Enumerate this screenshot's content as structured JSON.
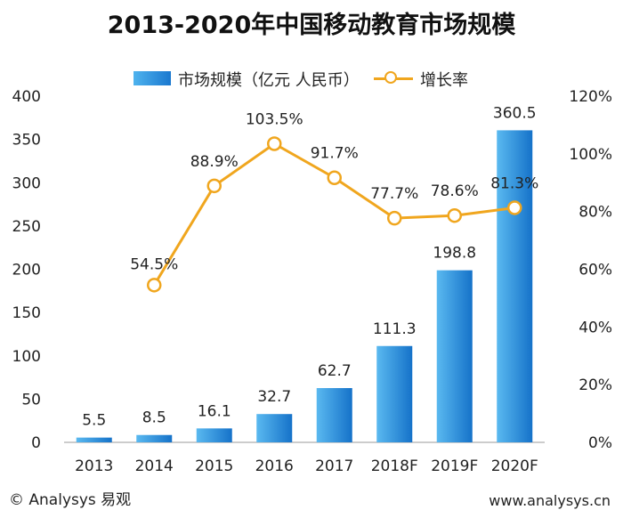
{
  "title": "2013-2020年中国移动教育市场规模",
  "footer": {
    "left": "© Analysys 易观",
    "right": "www.analysys.cn"
  },
  "colors": {
    "bar": "#1f88d8",
    "line": "#f0a61e",
    "text": "#222222"
  },
  "chart_data": {
    "type": "bar",
    "categories": [
      "2013",
      "2014",
      "2015",
      "2016",
      "2017",
      "2018F",
      "2019F",
      "2020F"
    ],
    "series": [
      {
        "name": "市场规模（亿元 人民币）",
        "type": "bar",
        "axis": "left",
        "values": [
          5.5,
          8.5,
          16.1,
          32.7,
          62.7,
          111.3,
          198.8,
          360.5
        ],
        "labels": [
          "5.5",
          "8.5",
          "16.1",
          "32.7",
          "62.7",
          "111.3",
          "198.8",
          "360.5"
        ]
      },
      {
        "name": "增长率",
        "type": "line",
        "axis": "right",
        "values": [
          null,
          54.5,
          88.9,
          103.5,
          91.7,
          77.7,
          78.6,
          81.3
        ],
        "labels": [
          "",
          "54.5%",
          "88.9%",
          "103.5%",
          "91.7%",
          "77.7%",
          "78.6%",
          "81.3%"
        ]
      }
    ],
    "y_left": {
      "ylim": [
        0,
        400
      ],
      "ticks": [
        "0",
        "50",
        "100",
        "150",
        "200",
        "250",
        "300",
        "350",
        "400"
      ]
    },
    "y_right": {
      "ylim": [
        0,
        120
      ],
      "ticks": [
        "0%",
        "20%",
        "40%",
        "60%",
        "80%",
        "100%",
        "120%"
      ]
    },
    "legend_position": "top-center",
    "grid": false
  }
}
